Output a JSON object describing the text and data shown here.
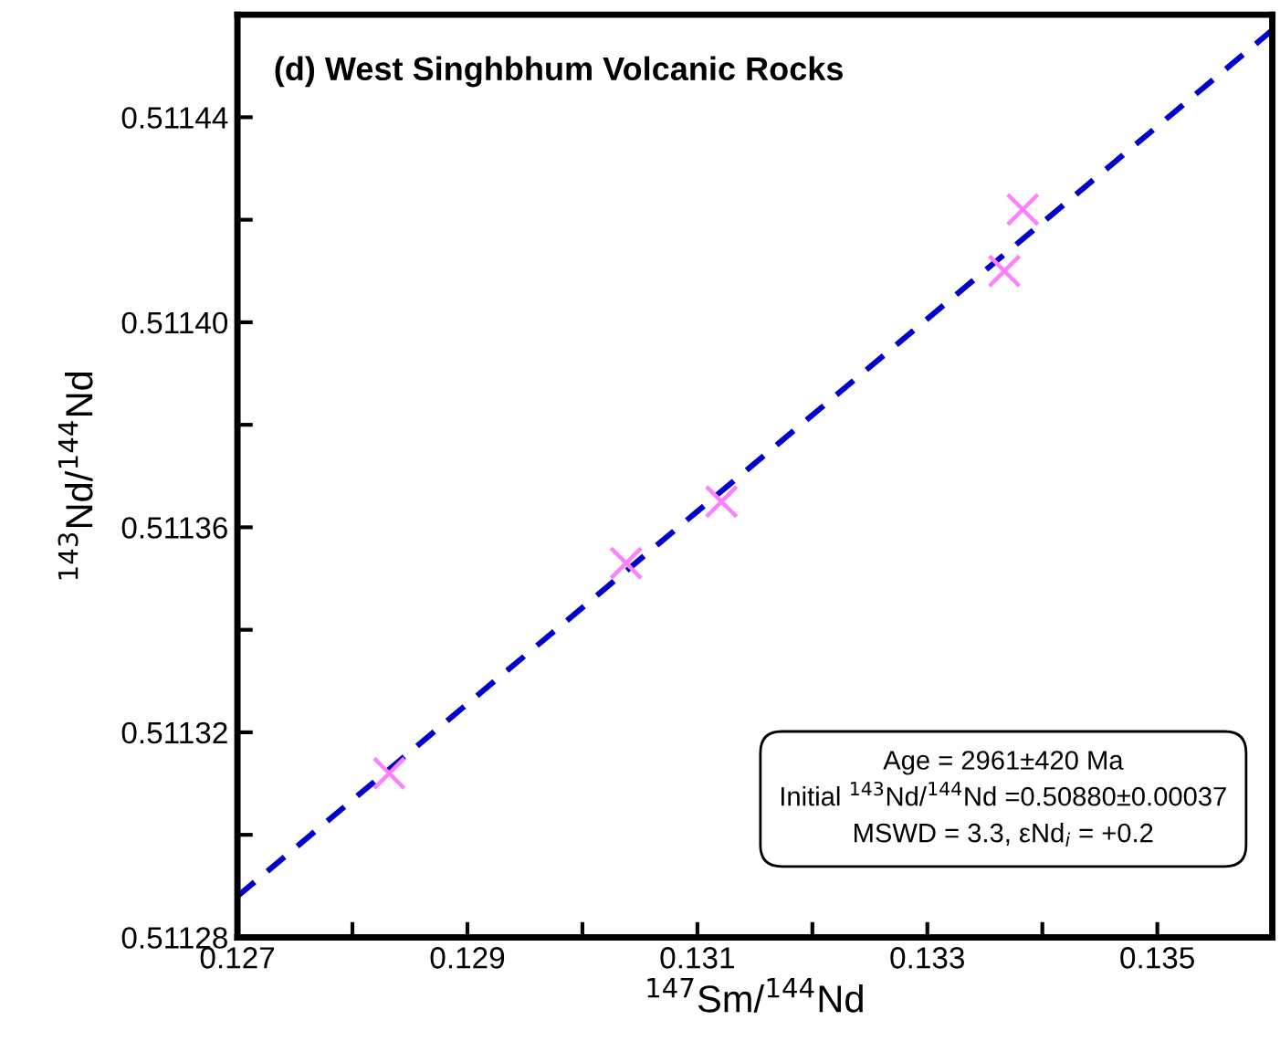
{
  "chart_data": {
    "type": "scatter",
    "title": "(d) West Singhbhum Volcanic Rocks",
    "xlabel": "$^{147}$Sm/$^{144}$Nd",
    "ylabel": "$^{143}$Nd/$^{144}$Nd",
    "x": [
      0.12832,
      0.13038,
      0.13121,
      0.13367,
      0.13383
    ],
    "series": [
      {
        "color": "#ff80ff",
        "marker": "cross",
        "values": [
          0.511312,
          0.511353,
          0.511365,
          0.51141,
          0.511422
        ]
      },
      {
        "type": "line",
        "color": "#0000cc",
        "line_style": "dashed",
        "marker": "none",
        "x": [
          0.127,
          0.136
        ],
        "values": [
          0.511288,
          0.511457
        ]
      }
    ],
    "xlim": [
      0.127,
      0.136
    ],
    "xticks": [
      {
        "value": 0.127,
        "label": "0.127"
      },
      {
        "value": 0.128,
        "label": null
      },
      {
        "value": 0.129,
        "label": "0.129"
      },
      {
        "value": 0.13,
        "label": null
      },
      {
        "value": 0.131,
        "label": "0.131"
      },
      {
        "value": 0.132,
        "label": null
      },
      {
        "value": 0.133,
        "label": "0.133"
      },
      {
        "value": 0.134,
        "label": null
      },
      {
        "value": 0.135,
        "label": "0.135"
      }
    ],
    "ylim": [
      0.51128,
      0.51146
    ],
    "yticks": [
      {
        "value": 0.51128,
        "label": "0.51128"
      },
      {
        "value": 0.5113,
        "label": null
      },
      {
        "value": 0.51132,
        "label": "0.51132"
      },
      {
        "value": 0.51134,
        "label": null
      },
      {
        "value": 0.51136,
        "label": "0.51136"
      },
      {
        "value": 0.51138,
        "label": null
      },
      {
        "value": 0.5114,
        "label": "0.51140"
      },
      {
        "value": 0.51142,
        "label": null
      },
      {
        "value": 0.51144,
        "label": "0.51144"
      }
    ],
    "grid": false,
    "legend": false,
    "annotations": [
      "Age = 2961±420 Ma\nInitial $^{143}$Nd/$^{144}$Nd =0.50880±0.00037\nMSWD = 3.3, εNd$_{i}$ = +0.2"
    ]
  }
}
